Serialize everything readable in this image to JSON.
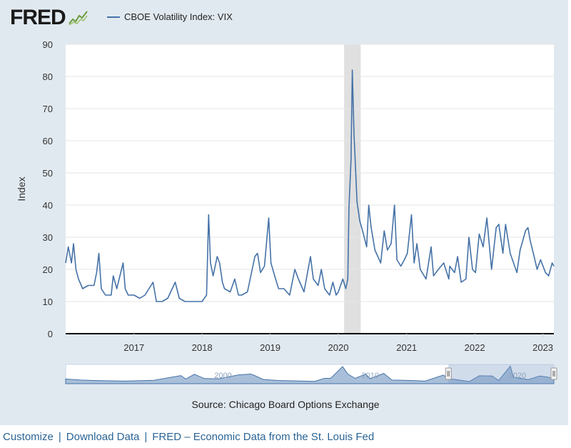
{
  "logo": {
    "text": "FRED",
    "icon": "chart-trend-icon"
  },
  "colors": {
    "line": "#4572a7",
    "recession": "#e0e0e0",
    "nav_fill": "#a9bfd9",
    "nav_window": "#7a9cc6"
  },
  "chart_data": {
    "type": "line",
    "series": [
      {
        "name": "CBOE Volatility Index: VIX"
      }
    ],
    "ylabel": "Index",
    "ylim": [
      0,
      90
    ],
    "yticks": [
      0,
      10,
      20,
      30,
      40,
      50,
      60,
      70,
      80,
      90
    ],
    "xlim": [
      "2016-01-01",
      "2023-03-01"
    ],
    "xticks": [
      "2017",
      "2018",
      "2019",
      "2020",
      "2021",
      "2022",
      "2023"
    ],
    "recession": [
      "2020-02-01",
      "2020-04-30"
    ],
    "navigator_labels": [
      "2000",
      "2010",
      "2020"
    ],
    "grid": true,
    "points": [
      [
        "2016-01-01",
        22
      ],
      [
        "2016-01-15",
        27
      ],
      [
        "2016-02-01",
        22
      ],
      [
        "2016-02-12",
        28
      ],
      [
        "2016-02-25",
        20
      ],
      [
        "2016-03-10",
        17
      ],
      [
        "2016-04-01",
        14
      ],
      [
        "2016-05-01",
        15
      ],
      [
        "2016-06-01",
        15
      ],
      [
        "2016-06-15",
        19
      ],
      [
        "2016-06-27",
        25
      ],
      [
        "2016-07-10",
        14
      ],
      [
        "2016-08-01",
        12
      ],
      [
        "2016-09-01",
        12
      ],
      [
        "2016-09-12",
        18
      ],
      [
        "2016-10-01",
        14
      ],
      [
        "2016-11-04",
        22
      ],
      [
        "2016-11-15",
        14
      ],
      [
        "2016-12-01",
        12
      ],
      [
        "2017-01-01",
        12
      ],
      [
        "2017-02-01",
        11
      ],
      [
        "2017-03-01",
        12
      ],
      [
        "2017-04-13",
        16
      ],
      [
        "2017-05-01",
        10
      ],
      [
        "2017-06-01",
        10
      ],
      [
        "2017-07-01",
        11
      ],
      [
        "2017-08-10",
        16
      ],
      [
        "2017-09-01",
        11
      ],
      [
        "2017-10-01",
        10
      ],
      [
        "2017-11-01",
        10
      ],
      [
        "2017-12-01",
        10
      ],
      [
        "2018-01-01",
        10
      ],
      [
        "2018-01-25",
        12
      ],
      [
        "2018-02-05",
        37
      ],
      [
        "2018-02-15",
        22
      ],
      [
        "2018-03-01",
        18
      ],
      [
        "2018-03-23",
        24
      ],
      [
        "2018-04-05",
        22
      ],
      [
        "2018-04-20",
        16
      ],
      [
        "2018-05-01",
        14
      ],
      [
        "2018-06-01",
        13
      ],
      [
        "2018-06-25",
        17
      ],
      [
        "2018-07-15",
        12
      ],
      [
        "2018-08-01",
        12
      ],
      [
        "2018-09-01",
        13
      ],
      [
        "2018-10-11",
        24
      ],
      [
        "2018-10-25",
        25
      ],
      [
        "2018-11-10",
        19
      ],
      [
        "2018-12-01",
        21
      ],
      [
        "2018-12-24",
        36
      ],
      [
        "2019-01-05",
        22
      ],
      [
        "2019-01-25",
        18
      ],
      [
        "2019-02-15",
        14
      ],
      [
        "2019-03-15",
        14
      ],
      [
        "2019-04-15",
        12
      ],
      [
        "2019-05-13",
        20
      ],
      [
        "2019-06-01",
        17
      ],
      [
        "2019-07-01",
        13
      ],
      [
        "2019-08-05",
        24
      ],
      [
        "2019-08-20",
        17
      ],
      [
        "2019-09-15",
        15
      ],
      [
        "2019-10-02",
        20
      ],
      [
        "2019-10-20",
        14
      ],
      [
        "2019-11-15",
        12
      ],
      [
        "2019-12-03",
        16
      ],
      [
        "2019-12-20",
        12
      ],
      [
        "2020-01-01",
        13
      ],
      [
        "2020-01-25",
        17
      ],
      [
        "2020-02-10",
        14
      ],
      [
        "2020-02-21",
        17
      ],
      [
        "2020-02-27",
        39
      ],
      [
        "2020-03-09",
        54
      ],
      [
        "2020-03-16",
        82
      ],
      [
        "2020-03-25",
        62
      ],
      [
        "2020-04-10",
        41
      ],
      [
        "2020-04-25",
        35
      ],
      [
        "2020-05-10",
        32
      ],
      [
        "2020-06-01",
        27
      ],
      [
        "2020-06-12",
        40
      ],
      [
        "2020-06-25",
        33
      ],
      [
        "2020-07-15",
        26
      ],
      [
        "2020-08-15",
        22
      ],
      [
        "2020-09-03",
        32
      ],
      [
        "2020-09-20",
        26
      ],
      [
        "2020-10-10",
        28
      ],
      [
        "2020-10-28",
        40
      ],
      [
        "2020-11-10",
        23
      ],
      [
        "2020-12-01",
        21
      ],
      [
        "2020-12-20",
        23
      ],
      [
        "2021-01-05",
        25
      ],
      [
        "2021-01-27",
        37
      ],
      [
        "2021-02-10",
        22
      ],
      [
        "2021-02-25",
        28
      ],
      [
        "2021-03-15",
        20
      ],
      [
        "2021-04-15",
        17
      ],
      [
        "2021-05-12",
        27
      ],
      [
        "2021-05-25",
        18
      ],
      [
        "2021-06-20",
        20
      ],
      [
        "2021-07-19",
        22
      ],
      [
        "2021-08-15",
        17
      ],
      [
        "2021-08-20",
        21
      ],
      [
        "2021-09-15",
        19
      ],
      [
        "2021-10-01",
        24
      ],
      [
        "2021-10-20",
        16
      ],
      [
        "2021-11-15",
        17
      ],
      [
        "2021-12-01",
        30
      ],
      [
        "2021-12-20",
        20
      ],
      [
        "2022-01-05",
        19
      ],
      [
        "2022-01-25",
        31
      ],
      [
        "2022-02-15",
        27
      ],
      [
        "2022-03-07",
        36
      ],
      [
        "2022-04-01",
        20
      ],
      [
        "2022-04-26",
        33
      ],
      [
        "2022-05-10",
        34
      ],
      [
        "2022-06-01",
        25
      ],
      [
        "2022-06-15",
        34
      ],
      [
        "2022-07-10",
        25
      ],
      [
        "2022-08-15",
        19
      ],
      [
        "2022-09-01",
        26
      ],
      [
        "2022-09-30",
        32
      ],
      [
        "2022-10-13",
        33
      ],
      [
        "2022-10-25",
        29
      ],
      [
        "2022-11-15",
        24
      ],
      [
        "2022-12-01",
        20
      ],
      [
        "2022-12-20",
        23
      ],
      [
        "2023-01-15",
        19
      ],
      [
        "2023-02-01",
        18
      ],
      [
        "2023-02-20",
        22
      ],
      [
        "2023-03-01",
        21
      ]
    ]
  },
  "navigator": {
    "profile": [
      [
        "1990-01-01",
        22
      ],
      [
        "1991-01-01",
        17
      ],
      [
        "1992-06-01",
        14
      ],
      [
        "1994-01-01",
        12
      ],
      [
        "1996-01-01",
        16
      ],
      [
        "1997-10-27",
        38
      ],
      [
        "1998-03-01",
        22
      ],
      [
        "1998-10-01",
        44
      ],
      [
        "1999-06-01",
        24
      ],
      [
        "2000-06-01",
        23
      ],
      [
        "2001-09-20",
        41
      ],
      [
        "2002-07-23",
        45
      ],
      [
        "2002-10-10",
        40
      ],
      [
        "2003-06-01",
        20
      ],
      [
        "2004-06-01",
        15
      ],
      [
        "2006-12-01",
        11
      ],
      [
        "2007-08-01",
        25
      ],
      [
        "2008-01-01",
        25
      ],
      [
        "2008-10-24",
        80
      ],
      [
        "2009-03-01",
        45
      ],
      [
        "2009-09-01",
        25
      ],
      [
        "2010-05-20",
        45
      ],
      [
        "2010-09-01",
        23
      ],
      [
        "2011-08-08",
        48
      ],
      [
        "2012-03-01",
        17
      ],
      [
        "2013-06-01",
        15
      ],
      [
        "2014-06-01",
        12
      ],
      [
        "2015-08-24",
        40
      ],
      [
        "2016-02-01",
        23
      ],
      [
        "2017-06-01",
        10
      ],
      [
        "2018-02-05",
        37
      ],
      [
        "2018-12-24",
        36
      ],
      [
        "2019-06-01",
        15
      ],
      [
        "2020-03-16",
        82
      ],
      [
        "2020-06-01",
        30
      ],
      [
        "2021-06-01",
        19
      ],
      [
        "2022-03-07",
        36
      ],
      [
        "2022-10-01",
        31
      ],
      [
        "2023-03-01",
        21
      ]
    ],
    "range": [
      "1990-01-01",
      "2023-03-01"
    ],
    "window": [
      "2016-01-01",
      "2023-03-01"
    ]
  },
  "source_text": "Source: Chicago Board Options Exchange",
  "footer": {
    "customize": "Customize",
    "download": "Download Data",
    "fred_link": "FRED – Economic Data from the St. Louis Fed",
    "separator": "|"
  }
}
